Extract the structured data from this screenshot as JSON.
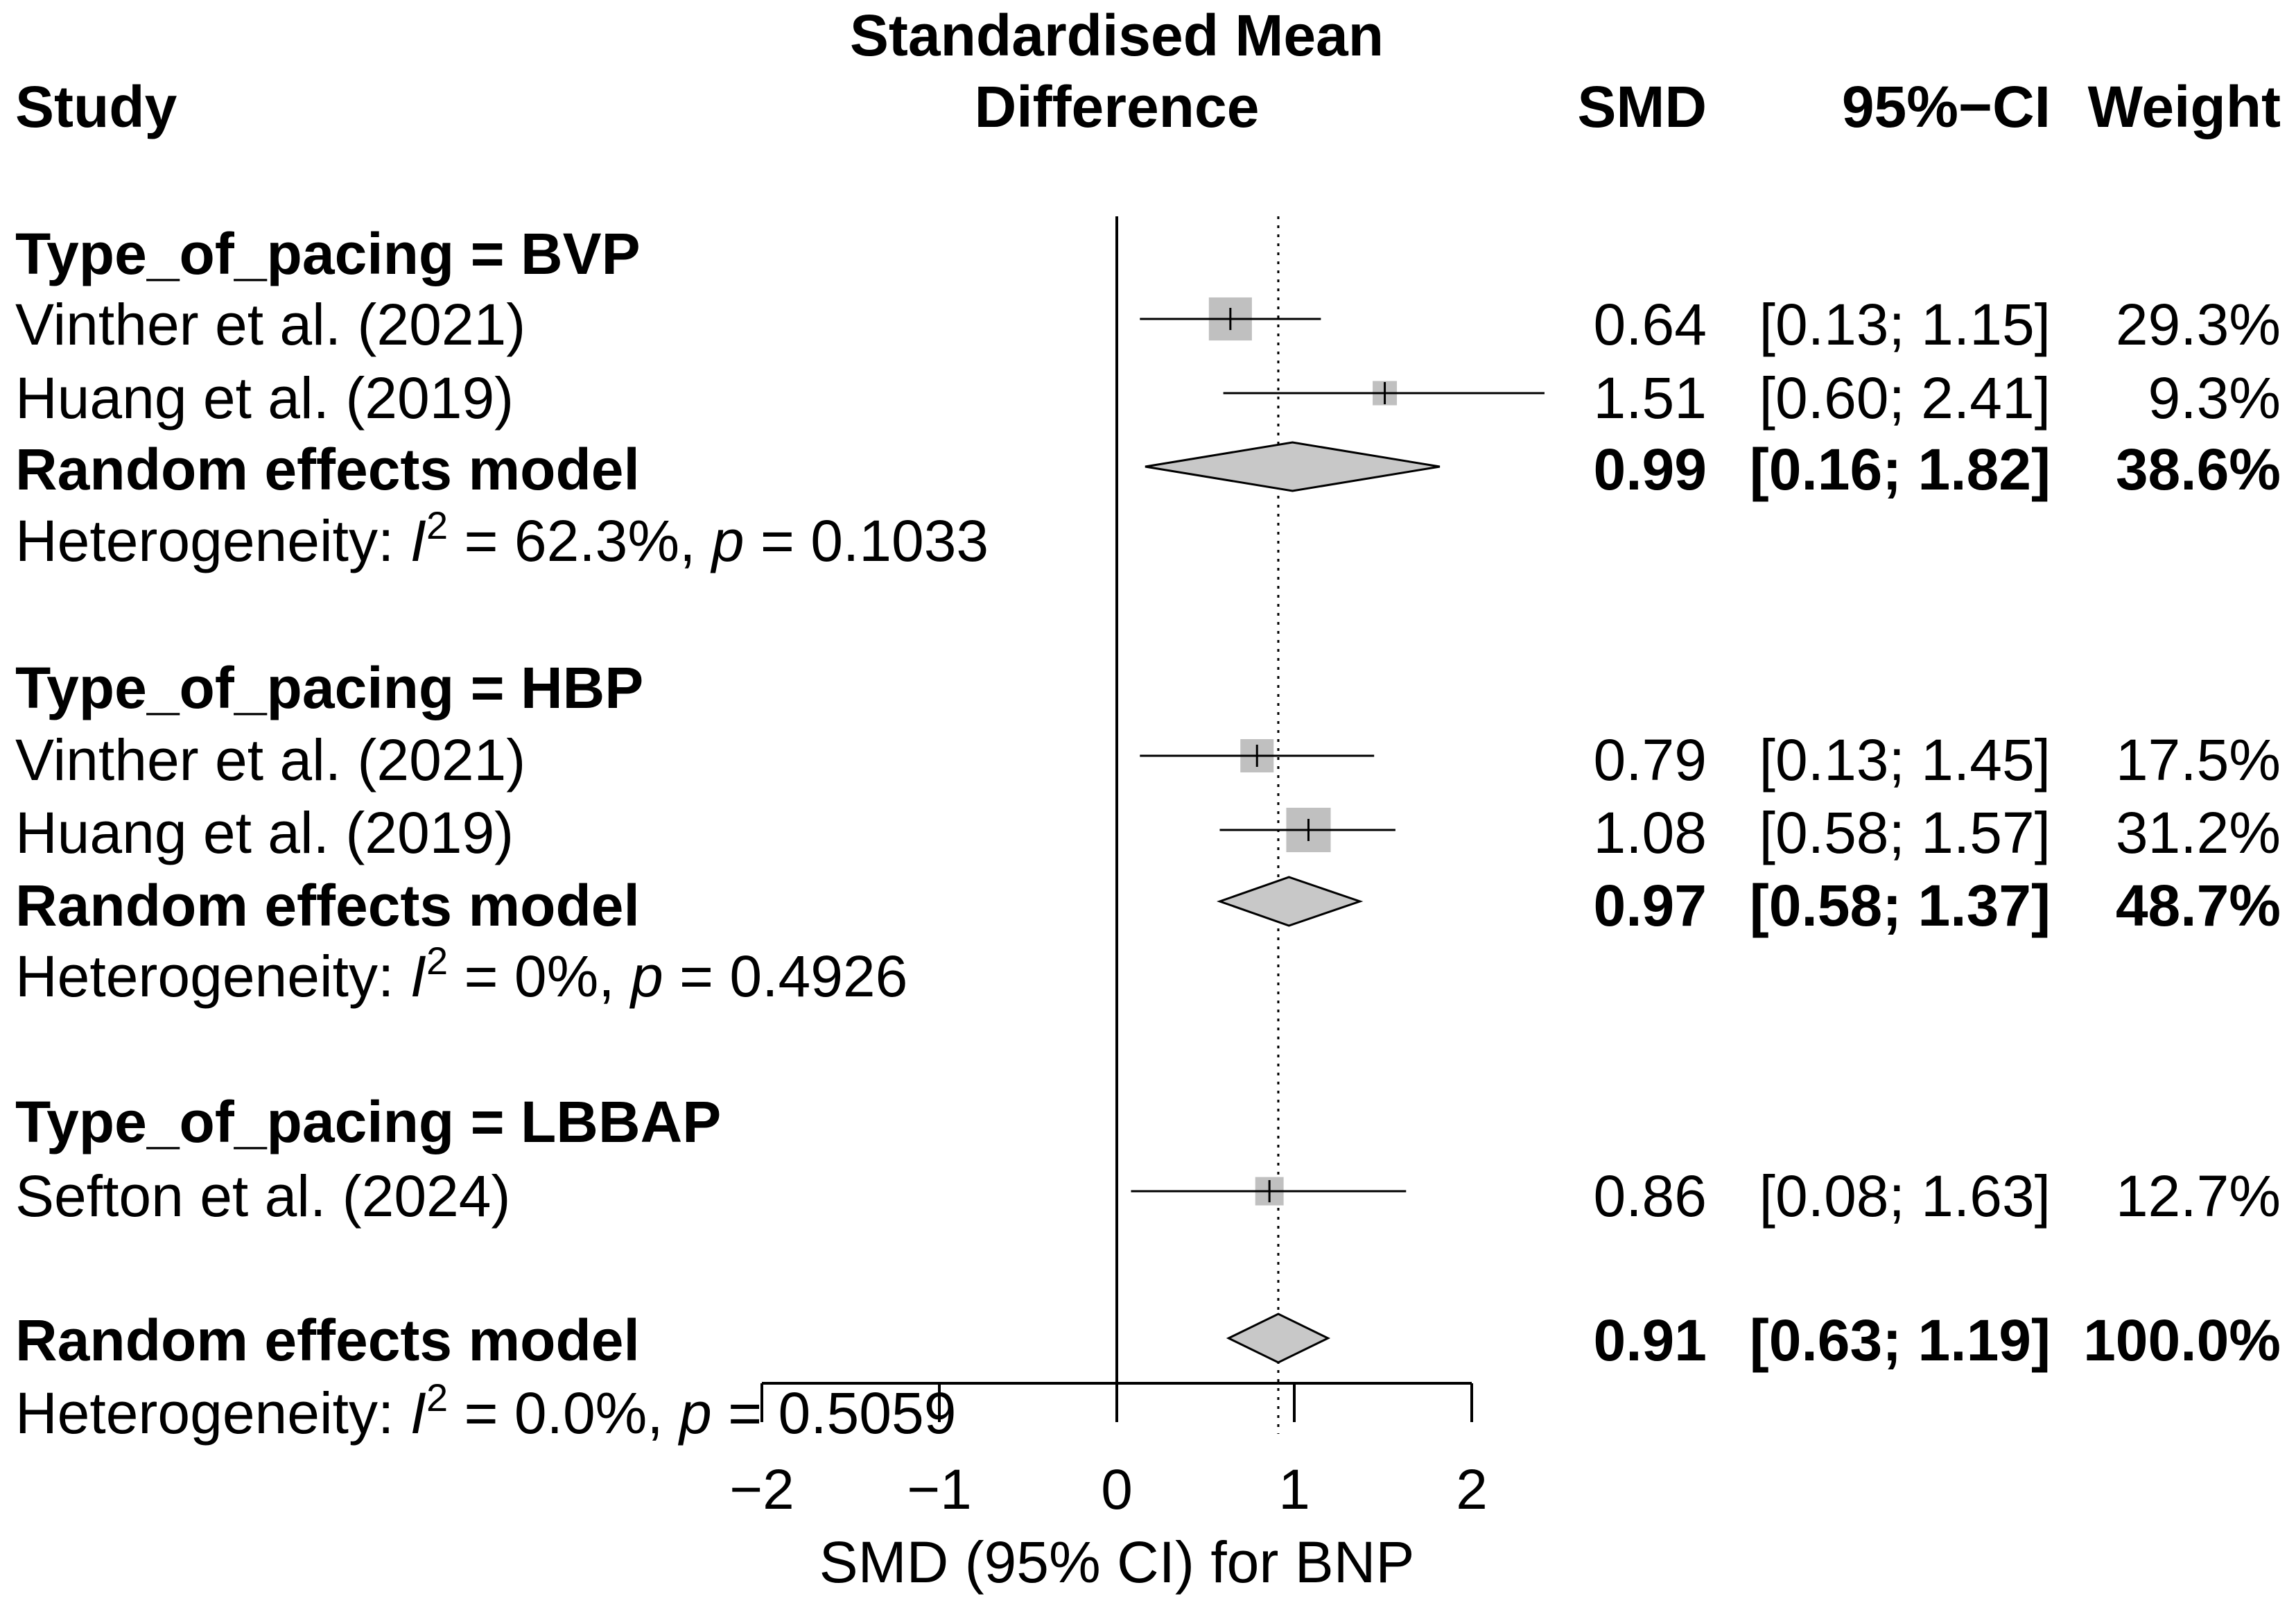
{
  "chart_data": {
    "type": "forest",
    "headers": {
      "study": "Study",
      "effect_line1": "Standardised Mean",
      "effect_line2": "Difference",
      "smd": "SMD",
      "ci": "95%−CI",
      "weight": "Weight"
    },
    "xlabel": "SMD (95% CI) for BNP",
    "xlim": [
      -2,
      2
    ],
    "ticks": [
      -2,
      -1,
      0,
      1,
      2
    ],
    "tick_labels": [
      "−2",
      "−1",
      "0",
      "1",
      "2"
    ],
    "null_line": 0,
    "overall_line": 0.91,
    "colors": {
      "box": "#c0c0c0",
      "diamond": "#c8c8c8",
      "stroke": "#000000"
    },
    "subgroups": [
      {
        "label": "Type_of_pacing = BVP",
        "studies": [
          {
            "name": "Vinther et al. (2021)",
            "smd": 0.64,
            "lower": 0.13,
            "upper": 1.15,
            "smd_text": "0.64",
            "ci_text": "[0.13; 1.15]",
            "weight": 29.3,
            "weight_text": "29.3%"
          },
          {
            "name": "Huang et al. (2019)",
            "smd": 1.51,
            "lower": 0.6,
            "upper": 2.41,
            "smd_text": "1.51",
            "ci_text": "[0.60; 2.41]",
            "weight": 9.3,
            "weight_text": "9.3%"
          }
        ],
        "pooled": {
          "label": "Random effects model",
          "smd": 0.99,
          "lower": 0.16,
          "upper": 1.82,
          "smd_text": "0.99",
          "ci_text": "[0.16; 1.82]",
          "weight_text": "38.6%"
        },
        "heterogeneity": {
          "prefix": "Heterogeneity: ",
          "i_symbol": "I",
          "sup": "2",
          "i2_text": " = 62.3%, ",
          "p_symbol": "p",
          "p_text": " = 0.1033"
        }
      },
      {
        "label": "Type_of_pacing = HBP",
        "studies": [
          {
            "name": "Vinther et al. (2021)",
            "smd": 0.79,
            "lower": 0.13,
            "upper": 1.45,
            "smd_text": "0.79",
            "ci_text": "[0.13; 1.45]",
            "weight": 17.5,
            "weight_text": "17.5%"
          },
          {
            "name": "Huang et al. (2019)",
            "smd": 1.08,
            "lower": 0.58,
            "upper": 1.57,
            "smd_text": "1.08",
            "ci_text": "[0.58; 1.57]",
            "weight": 31.2,
            "weight_text": "31.2%"
          }
        ],
        "pooled": {
          "label": "Random effects model",
          "smd": 0.97,
          "lower": 0.58,
          "upper": 1.37,
          "smd_text": "0.97",
          "ci_text": "[0.58; 1.37]",
          "weight_text": "48.7%"
        },
        "heterogeneity": {
          "prefix": "Heterogeneity: ",
          "i_symbol": "I",
          "sup": "2",
          "i2_text": " = 0%, ",
          "p_symbol": "p",
          "p_text": " = 0.4926"
        }
      },
      {
        "label": "Type_of_pacing = LBBAP",
        "studies": [
          {
            "name": "Sefton et al. (2024)",
            "smd": 0.86,
            "lower": 0.08,
            "upper": 1.63,
            "smd_text": "0.86",
            "ci_text": "[0.08; 1.63]",
            "weight": 12.7,
            "weight_text": "12.7%"
          }
        ]
      }
    ],
    "overall": {
      "label": "Random effects model",
      "smd": 0.91,
      "lower": 0.63,
      "upper": 1.19,
      "smd_text": "0.91",
      "ci_text": "[0.63; 1.19]",
      "weight_text": "100.0%",
      "heterogeneity": {
        "prefix": "Heterogeneity: ",
        "i_symbol": "I",
        "sup": "2",
        "i2_text": " = 0.0%, ",
        "p_symbol": "p",
        "p_text": " = 0.5059"
      }
    }
  }
}
